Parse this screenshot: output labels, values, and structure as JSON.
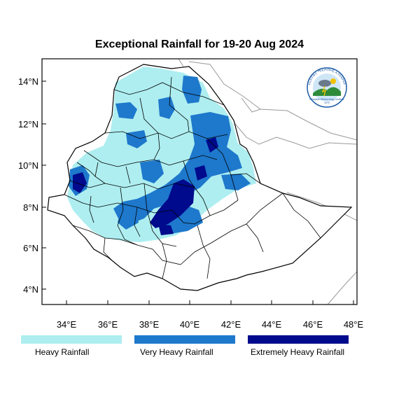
{
  "title": "Exceptional Rainfall for 19-20 Aug 2024",
  "axes": {
    "lat_labels": [
      "14°N",
      "12°N",
      "10°N",
      "8°N",
      "6°N",
      "4°N"
    ],
    "lon_labels": [
      "34°E",
      "36°E",
      "38°E",
      "40°E",
      "42°E",
      "44°E",
      "46°E",
      "48°E"
    ],
    "lon_range": [
      32.8,
      48.1
    ],
    "lat_range": [
      3.3,
      15.0
    ]
  },
  "legend": [
    {
      "label": "Heavy Rainfall",
      "color": "#aeeef0"
    },
    {
      "label": "Very Heavy Rainfall",
      "color": "#1e78cc"
    },
    {
      "label": "Extremely Heavy Rainfall",
      "color": "#000a8c"
    }
  ],
  "colors": {
    "heavy": "#aeeef0",
    "very_heavy": "#1e78cc",
    "extreme": "#000a8c",
    "border": "#000000",
    "neighbor": "#999999"
  },
  "logo_text": {
    "top": "የኢትዮጵያ ሜቲዎሮሎጂ ኢንስቲትዩት",
    "bottom": "Ethiopian Meteorology Institute",
    "year": "1970"
  }
}
